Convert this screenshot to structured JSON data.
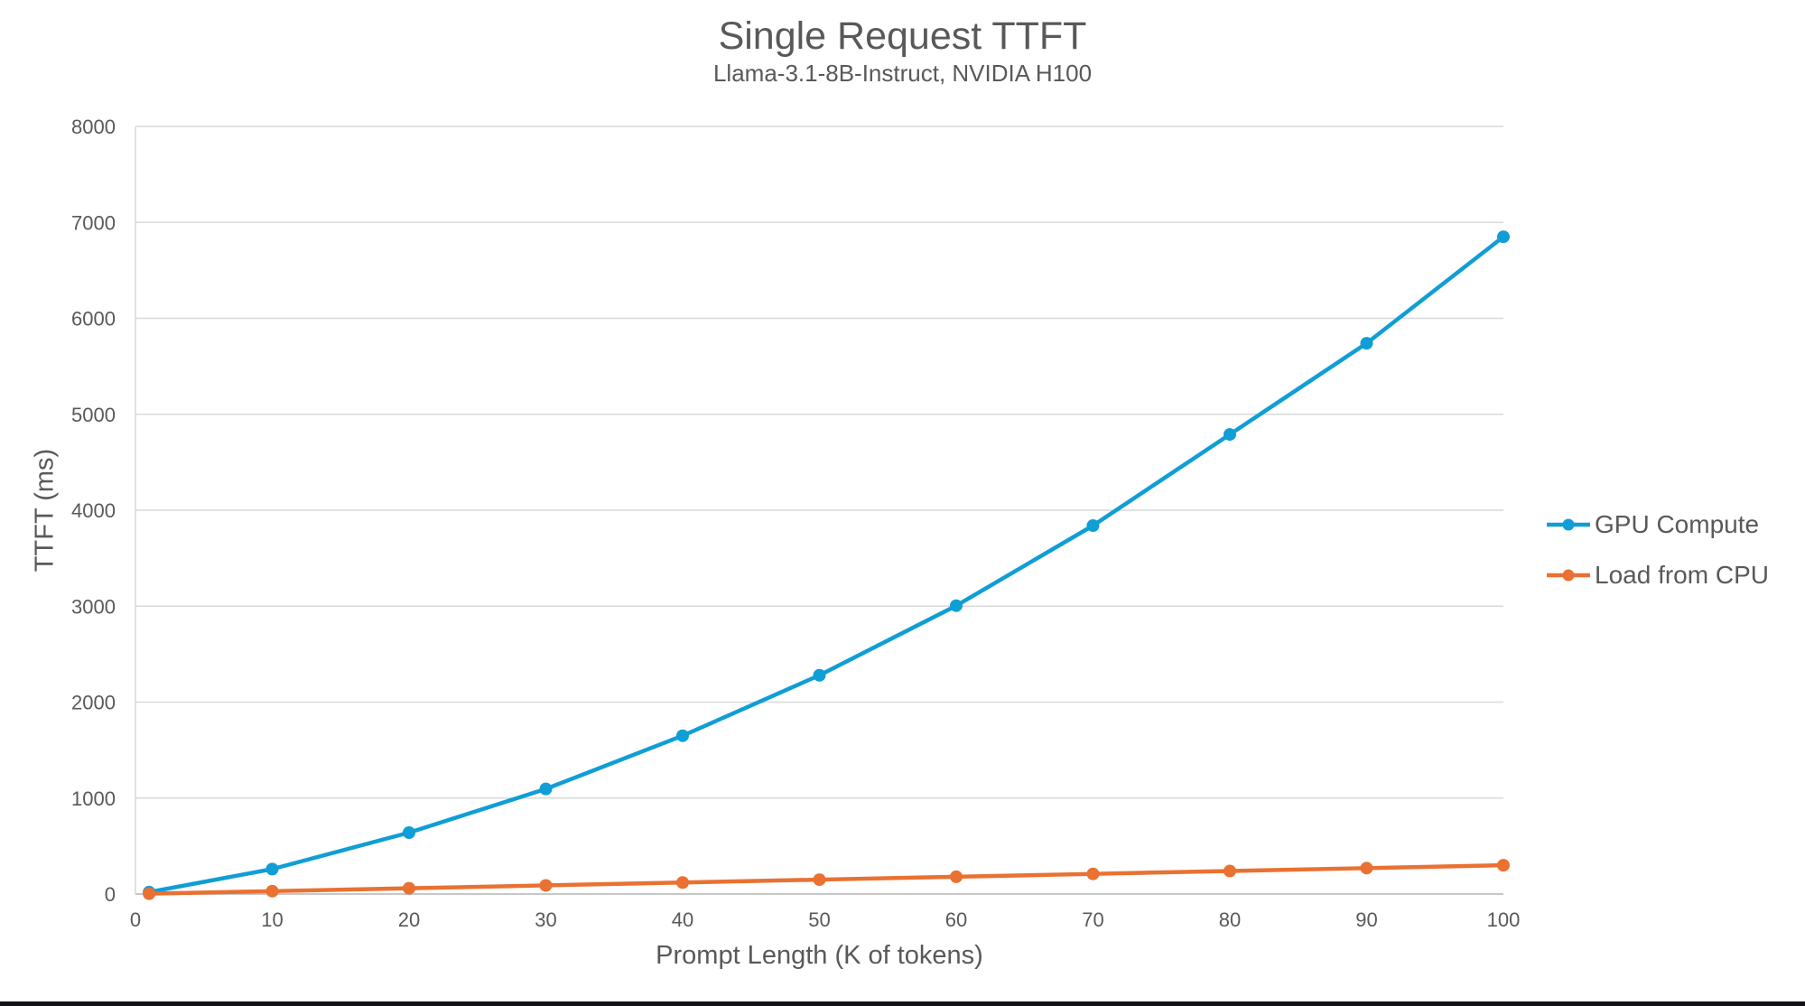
{
  "page": {
    "background": "#ffffff",
    "bottom_edge_color": "#131317"
  },
  "chart": {
    "title": "Single Request TTFT",
    "subtitle": "Llama-3.1-8B-Instruct, NVIDIA H100",
    "x_axis_title": "Prompt Length (K of tokens)",
    "y_axis_title": "TTFT (ms)",
    "text_color": "#595959",
    "gridline_color": "#D9D9D9",
    "axis_line_color": "#BFBFBF"
  },
  "legend": {
    "position": "right",
    "entries": [
      {
        "label": "GPU Compute",
        "color": "#0F9ED5"
      },
      {
        "label": "Load from CPU",
        "color": "#E97132"
      }
    ]
  },
  "chart_data": {
    "type": "line",
    "title": "Single Request TTFT",
    "subtitle": "Llama-3.1-8B-Instruct, NVIDIA H100",
    "xlabel": "Prompt Length (K of tokens)",
    "ylabel": "TTFT (ms)",
    "xlim": [
      0,
      100
    ],
    "ylim": [
      0,
      8000
    ],
    "x_ticks": [
      0,
      10,
      20,
      30,
      40,
      50,
      60,
      70,
      80,
      90,
      100
    ],
    "y_ticks": [
      0,
      1000,
      2000,
      3000,
      4000,
      5000,
      6000,
      7000,
      8000
    ],
    "grid": "horizontal",
    "legend_position": "right",
    "x": [
      1,
      10,
      20,
      30,
      40,
      50,
      60,
      70,
      80,
      90,
      100
    ],
    "series": [
      {
        "name": "GPU Compute",
        "color": "#0F9ED5",
        "marker": "circle",
        "values": [
          20,
          260,
          640,
          1095,
          1650,
          2280,
          3005,
          3840,
          4790,
          5740,
          6850
        ]
      },
      {
        "name": "Load from CPU",
        "color": "#E97132",
        "marker": "circle",
        "values": [
          3,
          30,
          60,
          90,
          120,
          150,
          180,
          210,
          240,
          270,
          300
        ]
      }
    ]
  }
}
